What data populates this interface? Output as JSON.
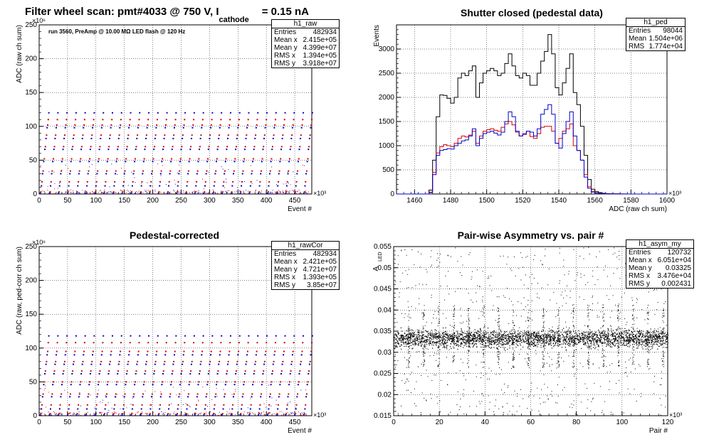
{
  "canvas": {
    "background": "#ffffff"
  },
  "chart_data": [
    {
      "id": "raw",
      "type": "scatter",
      "title": "Filter wheel scan: pmt#4033 @   750 V, I",
      "title_sub": "cathode",
      "title_tail": "= 0.15 nA",
      "annotation": "run 3560, PreAmp @ 10.00 MΩ LED flash @  120 Hz",
      "xlabel": "Event #",
      "ylabel": "ADC (raw ch sum)",
      "x_exponent": "×10³",
      "y_exponent": "×10⁶",
      "xlim": [
        0,
        480
      ],
      "ylim": [
        0,
        250
      ],
      "x_ticks": [
        0,
        50,
        100,
        150,
        200,
        250,
        300,
        350,
        400,
        450
      ],
      "y_ticks": [
        0,
        50,
        100,
        150,
        200,
        250
      ],
      "grid": true,
      "period": 16,
      "levels": [
        {
          "y": 1,
          "color": "blue"
        },
        {
          "y": 3,
          "color": "red"
        },
        {
          "y": 12,
          "color": "blue"
        },
        {
          "y": 18,
          "color": "red"
        },
        {
          "y": 30,
          "color": "blue"
        },
        {
          "y": 34,
          "color": "red"
        },
        {
          "y": 48,
          "color": "blue"
        },
        {
          "y": 52,
          "color": "red"
        },
        {
          "y": 66,
          "color": "blue"
        },
        {
          "y": 70,
          "color": "red"
        },
        {
          "y": 82,
          "color": "blue"
        },
        {
          "y": 87,
          "color": "red"
        },
        {
          "y": 98,
          "color": "blue"
        },
        {
          "y": 102,
          "color": "red"
        },
        {
          "y": 110,
          "color": "red"
        },
        {
          "y": 120,
          "color": "blue"
        }
      ],
      "stats": {
        "name": "h1_raw",
        "rows": [
          {
            "label": "Entries",
            "value": "482934"
          },
          {
            "label": "Mean x",
            "value": "2.415e+05"
          },
          {
            "label": "Mean y",
            "value": "4.399e+07"
          },
          {
            "label": "RMS x",
            "value": "1.394e+05"
          },
          {
            "label": "RMS y",
            "value": "3.918e+07"
          }
        ]
      }
    },
    {
      "id": "ped",
      "type": "histogram",
      "title": "Shutter closed (pedestal data)",
      "xlabel": "ADC (raw ch sum)",
      "ylabel": "Events",
      "x_exponent": "×10³",
      "xlim": [
        1450,
        1600
      ],
      "ylim": [
        0,
        3500
      ],
      "x_ticks": [
        1460,
        1480,
        1500,
        1520,
        1540,
        1560,
        1580,
        1600
      ],
      "y_ticks": [
        0,
        500,
        1000,
        1500,
        2000,
        2500,
        3000
      ],
      "grid": true,
      "bin_start": 1466,
      "bin_width": 2,
      "series": [
        {
          "color": "black",
          "values": [
            0,
            80,
            700,
            1600,
            2050,
            2040,
            1980,
            1880,
            2000,
            2400,
            2500,
            2450,
            2550,
            2650,
            2000,
            2300,
            2500,
            2550,
            2600,
            2550,
            2450,
            2500,
            2700,
            2900,
            2650,
            2450,
            2400,
            2500,
            2450,
            2250,
            2250,
            2500,
            2750,
            2950,
            3300,
            2900,
            2200,
            2050,
            2300,
            2600,
            2900,
            2100,
            1850,
            1400,
            800,
            300,
            100,
            50,
            30,
            15,
            8,
            5,
            4,
            3,
            2,
            1
          ]
        },
        {
          "color": "red",
          "values": [
            0,
            40,
            450,
            850,
            980,
            1020,
            1000,
            980,
            1050,
            1150,
            1200,
            1180,
            1220,
            1300,
            1050,
            1200,
            1300,
            1330,
            1350,
            1320,
            1300,
            1380,
            1450,
            1500,
            1430,
            1280,
            1200,
            1230,
            1300,
            1190,
            1150,
            1250,
            1380,
            1400,
            1400,
            1300,
            1050,
            1150,
            1300,
            1350,
            1450,
            1000,
            900,
            700,
            400,
            150,
            50,
            25,
            15,
            8,
            4,
            2,
            2,
            1,
            1,
            0
          ]
        },
        {
          "color": "blue",
          "values": [
            0,
            30,
            400,
            800,
            900,
            920,
            940,
            930,
            1000,
            1050,
            1100,
            1120,
            1200,
            1350,
            1000,
            1150,
            1250,
            1280,
            1300,
            1260,
            1220,
            1280,
            1500,
            1700,
            1600,
            1300,
            1200,
            1250,
            1300,
            1280,
            1200,
            1350,
            1650,
            1750,
            1850,
            1650,
            1050,
            950,
            1250,
            1500,
            1700,
            1200,
            900,
            700,
            350,
            120,
            40,
            20,
            10,
            5,
            3,
            2,
            1,
            1,
            0,
            0
          ]
        }
      ],
      "stats": {
        "name": "h1_ped",
        "rows": [
          {
            "label": "Entries",
            "value": "98044"
          },
          {
            "label": "Mean",
            "value": "1.504e+06"
          },
          {
            "label": "RMS",
            "value": "1.774e+04"
          }
        ]
      }
    },
    {
      "id": "rawCor",
      "type": "scatter",
      "title": "Pedestal-corrected",
      "xlabel": "Event #",
      "ylabel": "ADC (raw, ped-corr ch sum)",
      "x_exponent": "×10³",
      "y_exponent": "×10⁶",
      "xlim": [
        0,
        480
      ],
      "ylim": [
        0,
        250
      ],
      "x_ticks": [
        0,
        50,
        100,
        150,
        200,
        250,
        300,
        350,
        400,
        450
      ],
      "y_ticks": [
        0,
        50,
        100,
        150,
        200,
        250
      ],
      "grid": true,
      "period": 16,
      "levels": [
        {
          "y": 1,
          "color": "blue"
        },
        {
          "y": 3,
          "color": "red"
        },
        {
          "y": 10,
          "color": "blue"
        },
        {
          "y": 16,
          "color": "red"
        },
        {
          "y": 28,
          "color": "blue"
        },
        {
          "y": 32,
          "color": "red"
        },
        {
          "y": 46,
          "color": "blue"
        },
        {
          "y": 50,
          "color": "red"
        },
        {
          "y": 62,
          "color": "blue"
        },
        {
          "y": 66,
          "color": "red"
        },
        {
          "y": 76,
          "color": "blue"
        },
        {
          "y": 80,
          "color": "red"
        },
        {
          "y": 90,
          "color": "blue"
        },
        {
          "y": 95,
          "color": "red"
        },
        {
          "y": 108,
          "color": "red"
        },
        {
          "y": 118,
          "color": "blue"
        }
      ],
      "stats": {
        "name": "h1_rawCor",
        "rows": [
          {
            "label": "Entries",
            "value": "482934"
          },
          {
            "label": "Mean x",
            "value": "2.421e+05"
          },
          {
            "label": "Mean y",
            "value": "4.721e+07"
          },
          {
            "label": "RMS x",
            "value": "1.393e+05"
          },
          {
            "label": "RMS y",
            "value": "3.85e+07"
          }
        ]
      }
    },
    {
      "id": "asym",
      "type": "scatter",
      "title": "Pair-wise Asymmetry vs. pair #",
      "xlabel": "Pair #",
      "ylabel": "A",
      "ylabel_sub": "LED",
      "x_exponent": "×10³",
      "xlim": [
        0,
        120
      ],
      "ylim": [
        0.015,
        0.055
      ],
      "x_ticks": [
        0,
        20,
        40,
        60,
        80,
        100,
        120
      ],
      "y_ticks": [
        0.015,
        0.02,
        0.025,
        0.03,
        0.035,
        0.04,
        0.045,
        0.05,
        0.055
      ],
      "grid": true,
      "band_center": 0.0333,
      "band_halfwidth": 0.0015,
      "stats": {
        "name": "h1_asym_my",
        "rows": [
          {
            "label": "Entries",
            "value": "120732"
          },
          {
            "label": "Mean x",
            "value": "6.051e+04"
          },
          {
            "label": "Mean y",
            "value": "0.03325"
          },
          {
            "label": "RMS x",
            "value": "3.476e+04"
          },
          {
            "label": "RMS y",
            "value": "0.002431"
          }
        ]
      }
    }
  ]
}
